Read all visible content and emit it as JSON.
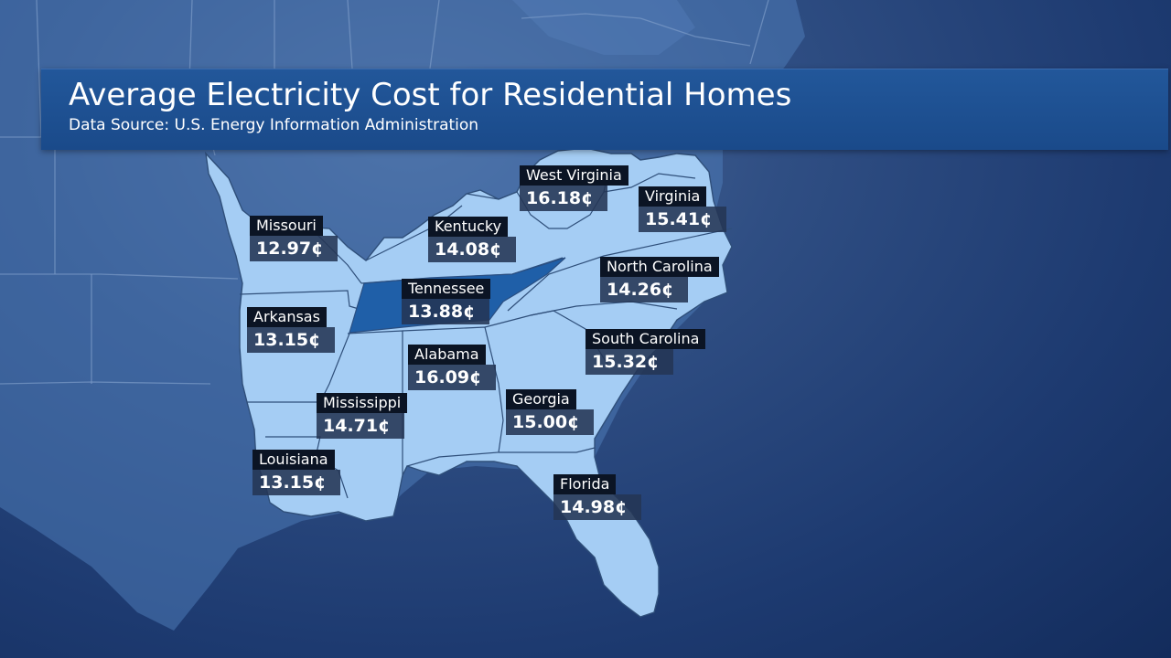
{
  "header": {
    "title": "Average Electricity Cost for Residential Homes",
    "subtitle": "Data Source:  U.S. Energy Information Administration"
  },
  "colors": {
    "land": "#4f7fbd",
    "land_line": "#6f95c6",
    "state_fill": "#a5cdf4",
    "state_border": "#2f4f7a",
    "highlight": "#1f5fa8",
    "label_name_bg": "#0b1424",
    "label_value_bg": "#243654"
  },
  "map": {
    "highlighted_state": "Tennessee",
    "states": [
      {
        "id": "missouri",
        "name": "Missouri",
        "value": "12.97¢"
      },
      {
        "id": "arkansas",
        "name": "Arkansas",
        "value": "13.15¢"
      },
      {
        "id": "louisiana",
        "name": "Louisiana",
        "value": "13.15¢"
      },
      {
        "id": "mississippi",
        "name": "Mississippi",
        "value": "14.71¢"
      },
      {
        "id": "tennessee",
        "name": "Tennessee",
        "value": "13.88¢"
      },
      {
        "id": "kentucky",
        "name": "Kentucky",
        "value": "14.08¢"
      },
      {
        "id": "alabama",
        "name": "Alabama",
        "value": "16.09¢"
      },
      {
        "id": "georgia",
        "name": "Georgia",
        "value": "15.00¢"
      },
      {
        "id": "florida",
        "name": "Florida",
        "value": "14.98¢"
      },
      {
        "id": "south-carolina",
        "name": "South Carolina",
        "value": "15.32¢"
      },
      {
        "id": "north-carolina",
        "name": "North Carolina",
        "value": "14.26¢"
      },
      {
        "id": "virginia",
        "name": "Virginia",
        "value": "15.41¢"
      },
      {
        "id": "west-virginia",
        "name": "West Virginia",
        "value": "16.18¢"
      }
    ]
  }
}
